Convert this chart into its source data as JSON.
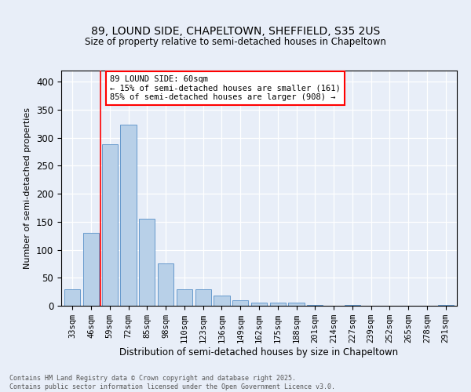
{
  "title1": "89, LOUND SIDE, CHAPELTOWN, SHEFFIELD, S35 2US",
  "title2": "Size of property relative to semi-detached houses in Chapeltown",
  "xlabel": "Distribution of semi-detached houses by size in Chapeltown",
  "ylabel": "Number of semi-detached properties",
  "categories": [
    "33sqm",
    "46sqm",
    "59sqm",
    "72sqm",
    "85sqm",
    "98sqm",
    "110sqm",
    "123sqm",
    "136sqm",
    "149sqm",
    "162sqm",
    "175sqm",
    "188sqm",
    "201sqm",
    "214sqm",
    "227sqm",
    "239sqm",
    "252sqm",
    "265sqm",
    "278sqm",
    "291sqm"
  ],
  "values": [
    30,
    130,
    289,
    323,
    155,
    75,
    30,
    30,
    18,
    10,
    5,
    6,
    6,
    2,
    0,
    2,
    0,
    0,
    0,
    0,
    2
  ],
  "bar_color": "#b8d0e8",
  "bar_edge_color": "#6699cc",
  "vline_x": 1.5,
  "vline_color": "red",
  "annotation_title": "89 LOUND SIDE: 60sqm",
  "annotation_line1": "← 15% of semi-detached houses are smaller (161)",
  "annotation_line2": "85% of semi-detached houses are larger (908) →",
  "annotation_box_color": "white",
  "annotation_box_edge_color": "red",
  "footer1": "Contains HM Land Registry data © Crown copyright and database right 2025.",
  "footer2": "Contains public sector information licensed under the Open Government Licence v3.0.",
  "background_color": "#e8eef8",
  "ylim": [
    0,
    420
  ],
  "yticks": [
    0,
    50,
    100,
    150,
    200,
    250,
    300,
    350,
    400
  ]
}
